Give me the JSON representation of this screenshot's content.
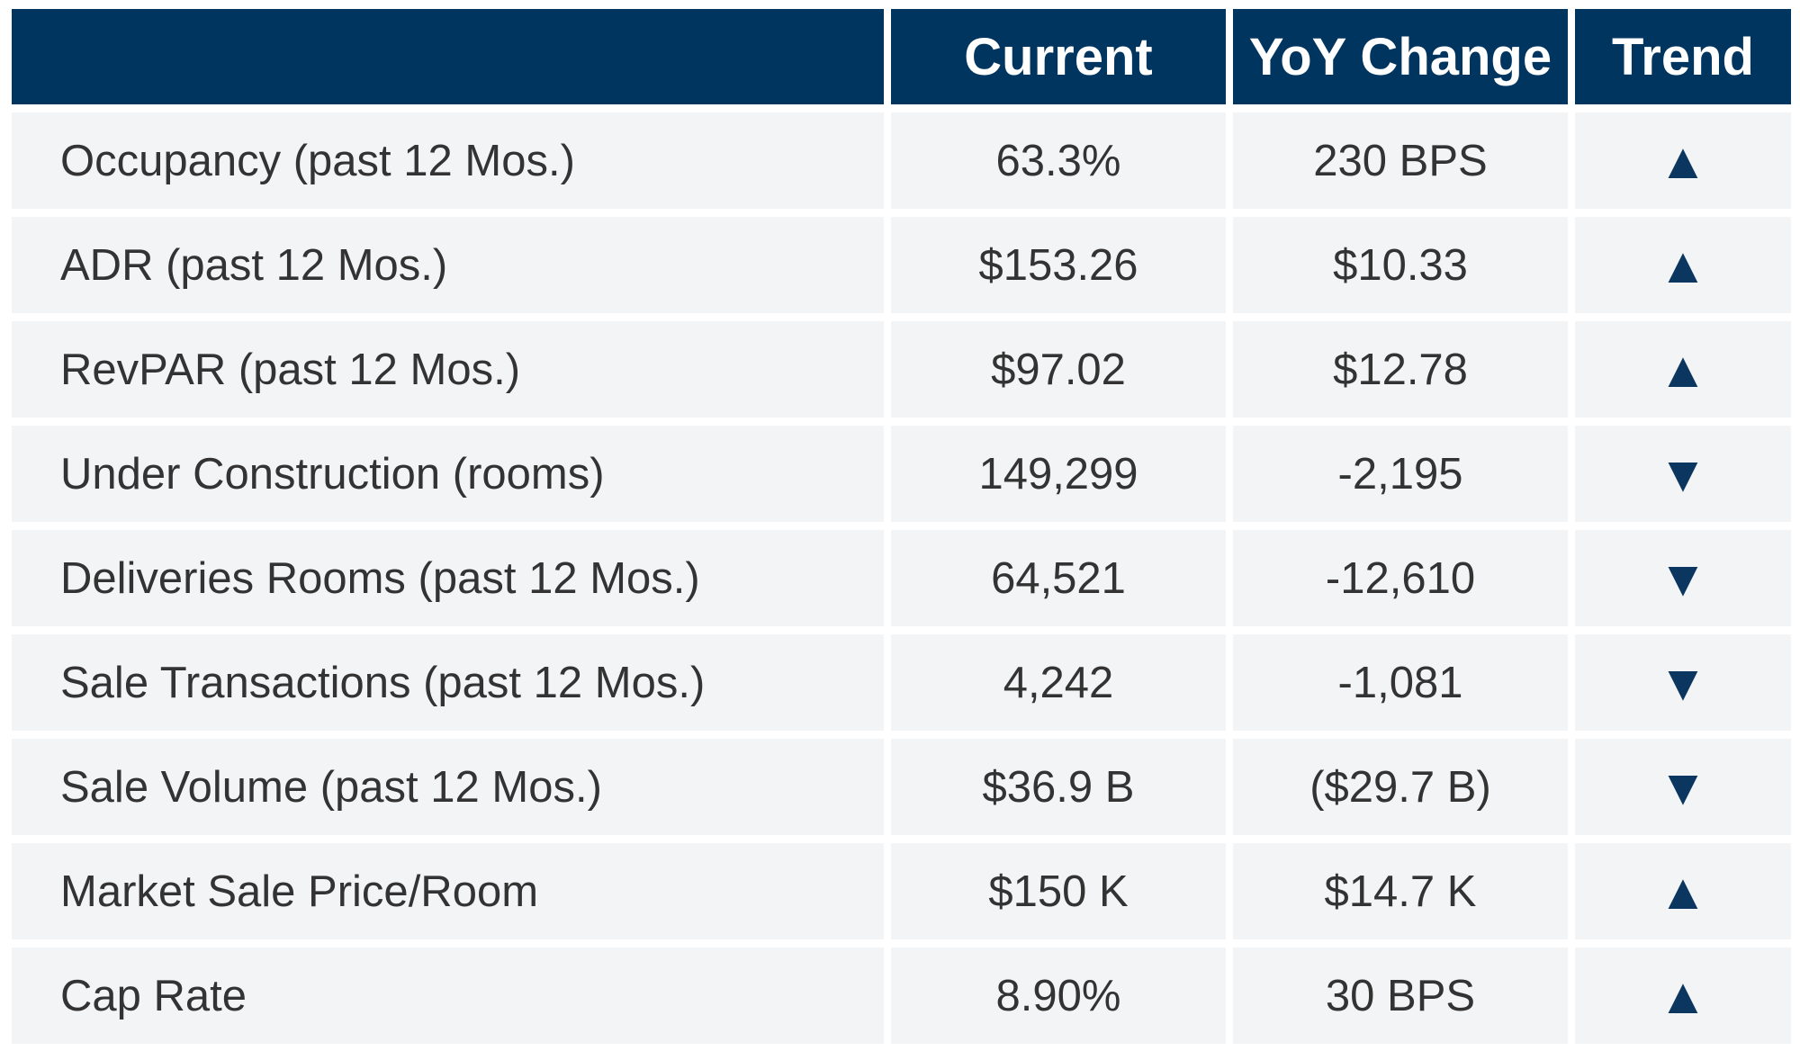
{
  "table": {
    "header": [
      "Current",
      "YoY Change",
      "Trend"
    ],
    "rows": [
      [
        "Occupancy (past 12 Mos.)",
        "63.3%",
        "230 BPS",
        "▲"
      ],
      [
        "ADR (past 12 Mos.)",
        "$153.26",
        "$10.33",
        "▲"
      ],
      [
        "RevPAR (past 12 Mos.)",
        "$97.02",
        "$12.78",
        "▲"
      ],
      [
        "Under Construction (rooms)",
        "149,299",
        "-2,195",
        "▼"
      ],
      [
        "Deliveries Rooms (past 12 Mos.)",
        "64,521",
        "-12,610",
        "▼"
      ],
      [
        "Sale Transactions (past 12 Mos.)",
        "4,242",
        "-1,081",
        "▼"
      ],
      [
        "Sale Volume (past 12 Mos.)",
        "$36.9 B",
        "($29.7 B)",
        "▼"
      ],
      [
        "Market Sale Price/Room",
        "$150 K",
        "$14.7 K",
        "▲"
      ],
      [
        "Cap Rate",
        "8.90%",
        "30 BPS",
        "▲"
      ]
    ]
  }
}
